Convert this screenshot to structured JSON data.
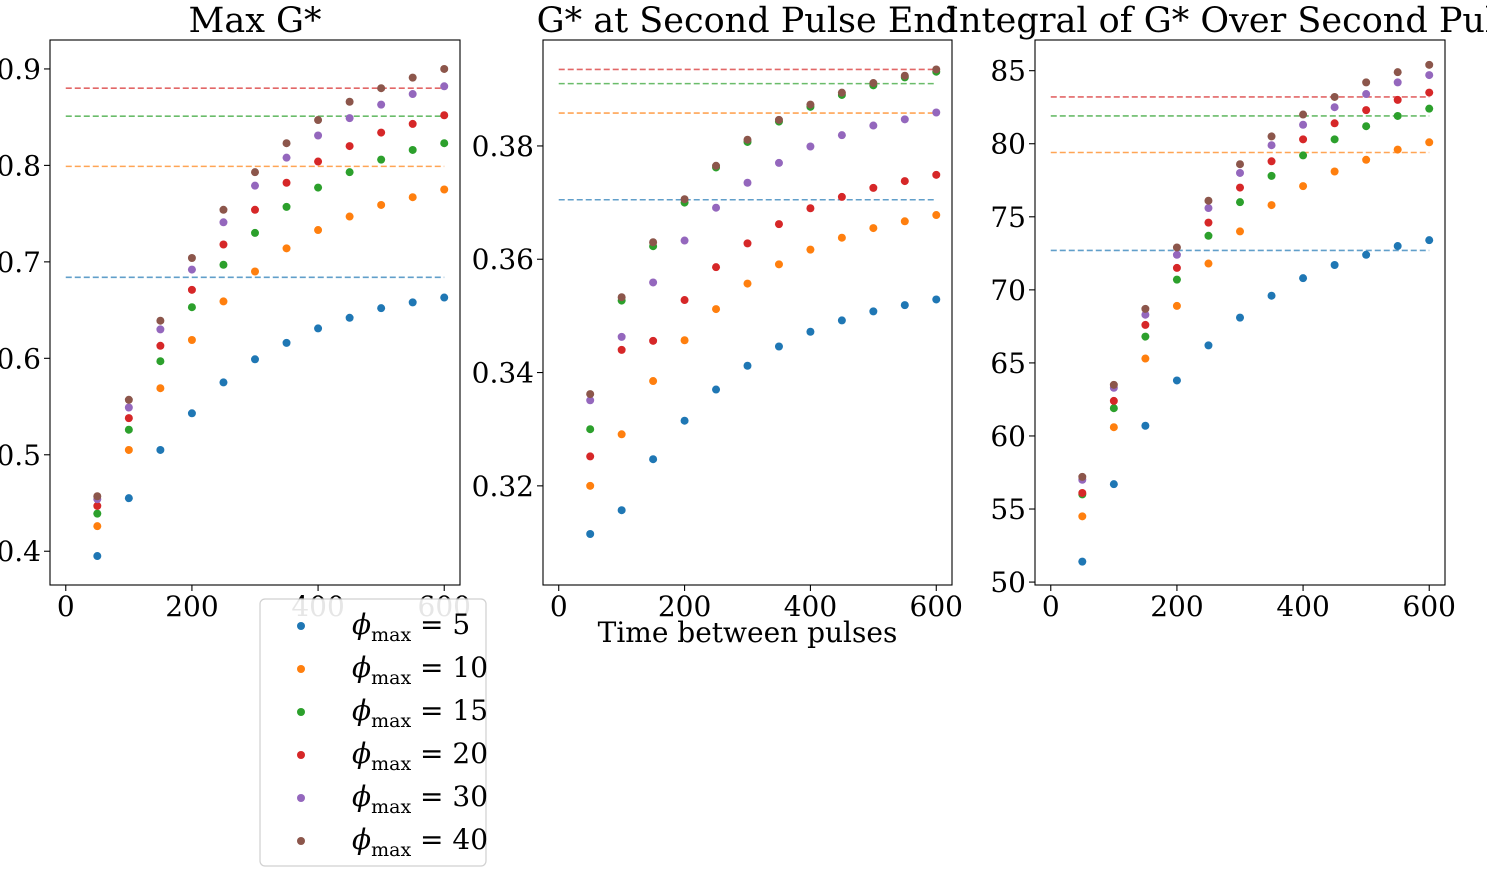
{
  "colors": {
    "phi_5": "#1f77b4",
    "phi_10": "#ff7f0e",
    "phi_15": "#2ca02c",
    "phi_20": "#d62728",
    "phi_30": "#9467bd",
    "phi_40": "#8c564b"
  },
  "legend": {
    "placement": "below-left",
    "entries": [
      {
        "symbol": "ϕ",
        "sub": "max",
        "rest": " = 5",
        "color": "#1f77b4"
      },
      {
        "symbol": "ϕ",
        "sub": "max",
        "rest": " = 10",
        "color": "#ff7f0e"
      },
      {
        "symbol": "ϕ",
        "sub": "max",
        "rest": " = 15",
        "color": "#2ca02c"
      },
      {
        "symbol": "ϕ",
        "sub": "max",
        "rest": " = 20",
        "color": "#d62728"
      },
      {
        "symbol": "ϕ",
        "sub": "max",
        "rest": " = 30",
        "color": "#9467bd"
      },
      {
        "symbol": "ϕ",
        "sub": "max",
        "rest": " = 40",
        "color": "#8c564b"
      }
    ]
  },
  "chart_data": [
    {
      "type": "scatter",
      "title": "Max G*",
      "xlabel": "",
      "ylabel": "",
      "xlim": [
        -25,
        625
      ],
      "ylim": [
        0.365,
        0.93
      ],
      "xticks": [
        0,
        200,
        400,
        600
      ],
      "xtick_labels": [
        "0",
        "200",
        "400",
        "600"
      ],
      "yticks": [
        0.4,
        0.5,
        0.6,
        0.7,
        0.8,
        0.9
      ],
      "ytick_labels": [
        "0.4",
        "0.5",
        "0.6",
        "0.7",
        "0.8",
        "0.9"
      ],
      "grid": false,
      "x": [
        50,
        100,
        150,
        200,
        250,
        300,
        350,
        400,
        450,
        500,
        550,
        600
      ],
      "series": [
        {
          "color": "#1f77b4",
          "values": [
            0.395,
            0.455,
            0.505,
            0.543,
            0.575,
            0.599,
            0.616,
            0.631,
            0.642,
            0.652,
            0.658,
            0.663
          ]
        },
        {
          "color": "#ff7f0e",
          "values": [
            0.426,
            0.505,
            0.569,
            0.619,
            0.659,
            0.69,
            0.714,
            0.733,
            0.747,
            0.759,
            0.767,
            0.775
          ]
        },
        {
          "color": "#2ca02c",
          "values": [
            0.439,
            0.526,
            0.597,
            0.653,
            0.697,
            0.73,
            0.757,
            0.777,
            0.793,
            0.806,
            0.816,
            0.823
          ]
        },
        {
          "color": "#d62728",
          "values": [
            0.447,
            0.538,
            0.613,
            0.671,
            0.718,
            0.754,
            0.782,
            0.804,
            0.82,
            0.834,
            0.843,
            0.852
          ]
        },
        {
          "color": "#9467bd",
          "values": [
            0.454,
            0.549,
            0.63,
            0.692,
            0.741,
            0.779,
            0.808,
            0.831,
            0.849,
            0.863,
            0.874,
            0.882
          ]
        },
        {
          "color": "#8c564b",
          "values": [
            0.457,
            0.557,
            0.639,
            0.704,
            0.754,
            0.793,
            0.823,
            0.847,
            0.866,
            0.88,
            0.891,
            0.9
          ]
        }
      ],
      "reference_lines": [
        {
          "color": "#1f77b4",
          "y": 0.684,
          "x_range": [
            0,
            600
          ]
        },
        {
          "color": "#ff7f0e",
          "y": 0.799,
          "x_range": [
            0,
            600
          ]
        },
        {
          "color": "#2ca02c",
          "y": 0.851,
          "x_range": [
            0,
            600
          ]
        },
        {
          "color": "#d62728",
          "y": 0.88,
          "x_range": [
            0,
            600
          ]
        }
      ]
    },
    {
      "type": "scatter",
      "title": "G* at Second Pulse End",
      "xlabel": "Time between pulses",
      "ylabel": "",
      "xlim": [
        -25,
        625
      ],
      "ylim": [
        0.3025,
        0.3987
      ],
      "xticks": [
        0,
        200,
        400,
        600
      ],
      "xtick_labels": [
        "0",
        "200",
        "400",
        "600"
      ],
      "yticks": [
        0.32,
        0.34,
        0.36,
        0.38
      ],
      "ytick_labels": [
        "0.32",
        "0.34",
        "0.36",
        "0.38"
      ],
      "grid": false,
      "x": [
        50,
        100,
        150,
        200,
        250,
        300,
        350,
        400,
        450,
        500,
        550,
        600
      ],
      "series": [
        {
          "color": "#1f77b4",
          "values": [
            0.3115,
            0.3157,
            0.3247,
            0.3315,
            0.337,
            0.3412,
            0.3446,
            0.3472,
            0.3492,
            0.3508,
            0.3519,
            0.3529
          ]
        },
        {
          "color": "#ff7f0e",
          "values": [
            0.32,
            0.3291,
            0.3385,
            0.3457,
            0.3512,
            0.3557,
            0.3591,
            0.3617,
            0.3638,
            0.3655,
            0.3667,
            0.3678
          ]
        },
        {
          "color": "#2ca02c",
          "values": [
            0.33,
            0.3527,
            0.3623,
            0.37,
            0.3762,
            0.3807,
            0.3843,
            0.3869,
            0.389,
            0.3907,
            0.3921,
            0.3931
          ]
        },
        {
          "color": "#d62728",
          "values": [
            0.3252,
            0.344,
            0.3456,
            0.3528,
            0.3586,
            0.3628,
            0.3662,
            0.369,
            0.371,
            0.3726,
            0.3738,
            0.3749
          ]
        },
        {
          "color": "#9467bd",
          "values": [
            0.3351,
            0.3463,
            0.3559,
            0.3633,
            0.3691,
            0.3735,
            0.377,
            0.3799,
            0.3819,
            0.3836,
            0.3847,
            0.3859
          ]
        },
        {
          "color": "#8c564b",
          "values": [
            0.3362,
            0.3533,
            0.363,
            0.3706,
            0.3765,
            0.3811,
            0.3846,
            0.3873,
            0.3894,
            0.3911,
            0.3924,
            0.3935
          ]
        }
      ],
      "reference_lines": [
        {
          "color": "#1f77b4",
          "y": 0.3705,
          "x_range": [
            0,
            600
          ]
        },
        {
          "color": "#ff7f0e",
          "y": 0.3858,
          "x_range": [
            0,
            600
          ]
        },
        {
          "color": "#2ca02c",
          "y": 0.391,
          "x_range": [
            0,
            600
          ]
        },
        {
          "color": "#d62728",
          "y": 0.3935,
          "x_range": [
            0,
            600
          ]
        }
      ]
    },
    {
      "type": "scatter",
      "title": "Integral of G* Over Second Pulse",
      "xlabel": "",
      "ylabel": "",
      "xlim": [
        -25,
        625
      ],
      "ylim": [
        49.8,
        87.1
      ],
      "xticks": [
        0,
        200,
        400,
        600
      ],
      "xtick_labels": [
        "0",
        "200",
        "400",
        "600"
      ],
      "yticks": [
        50,
        55,
        60,
        65,
        70,
        75,
        80,
        85
      ],
      "ytick_labels": [
        "50",
        "55",
        "60",
        "65",
        "70",
        "75",
        "80",
        "85"
      ],
      "grid": false,
      "x": [
        50,
        100,
        150,
        200,
        250,
        300,
        350,
        400,
        450,
        500,
        550,
        600
      ],
      "series": [
        {
          "color": "#1f77b4",
          "values": [
            51.4,
            56.7,
            60.7,
            63.8,
            66.2,
            68.1,
            69.6,
            70.8,
            71.7,
            72.4,
            73.0,
            73.4
          ]
        },
        {
          "color": "#ff7f0e",
          "values": [
            54.5,
            60.6,
            65.3,
            68.9,
            71.8,
            74.0,
            75.8,
            77.1,
            78.1,
            78.9,
            79.6,
            80.1
          ]
        },
        {
          "color": "#2ca02c",
          "values": [
            56.0,
            61.9,
            66.8,
            70.7,
            73.7,
            76.0,
            77.8,
            79.2,
            80.3,
            81.2,
            81.9,
            82.4
          ]
        },
        {
          "color": "#d62728",
          "values": [
            56.1,
            62.4,
            67.6,
            71.5,
            74.6,
            77.0,
            78.8,
            80.3,
            81.4,
            82.3,
            83.0,
            83.5
          ]
        },
        {
          "color": "#9467bd",
          "values": [
            57.0,
            63.3,
            68.3,
            72.4,
            75.6,
            78.0,
            79.9,
            81.3,
            82.5,
            83.4,
            84.2,
            84.7
          ]
        },
        {
          "color": "#8c564b",
          "values": [
            57.2,
            63.5,
            68.7,
            72.9,
            76.1,
            78.6,
            80.5,
            82.0,
            83.2,
            84.2,
            84.9,
            85.4
          ]
        }
      ],
      "reference_lines": [
        {
          "color": "#1f77b4",
          "y": 72.7,
          "x_range": [
            0,
            600
          ]
        },
        {
          "color": "#ff7f0e",
          "y": 79.4,
          "x_range": [
            0,
            600
          ]
        },
        {
          "color": "#2ca02c",
          "y": 81.9,
          "x_range": [
            0,
            600
          ]
        },
        {
          "color": "#d62728",
          "y": 83.2,
          "x_range": [
            0,
            600
          ]
        }
      ]
    }
  ]
}
